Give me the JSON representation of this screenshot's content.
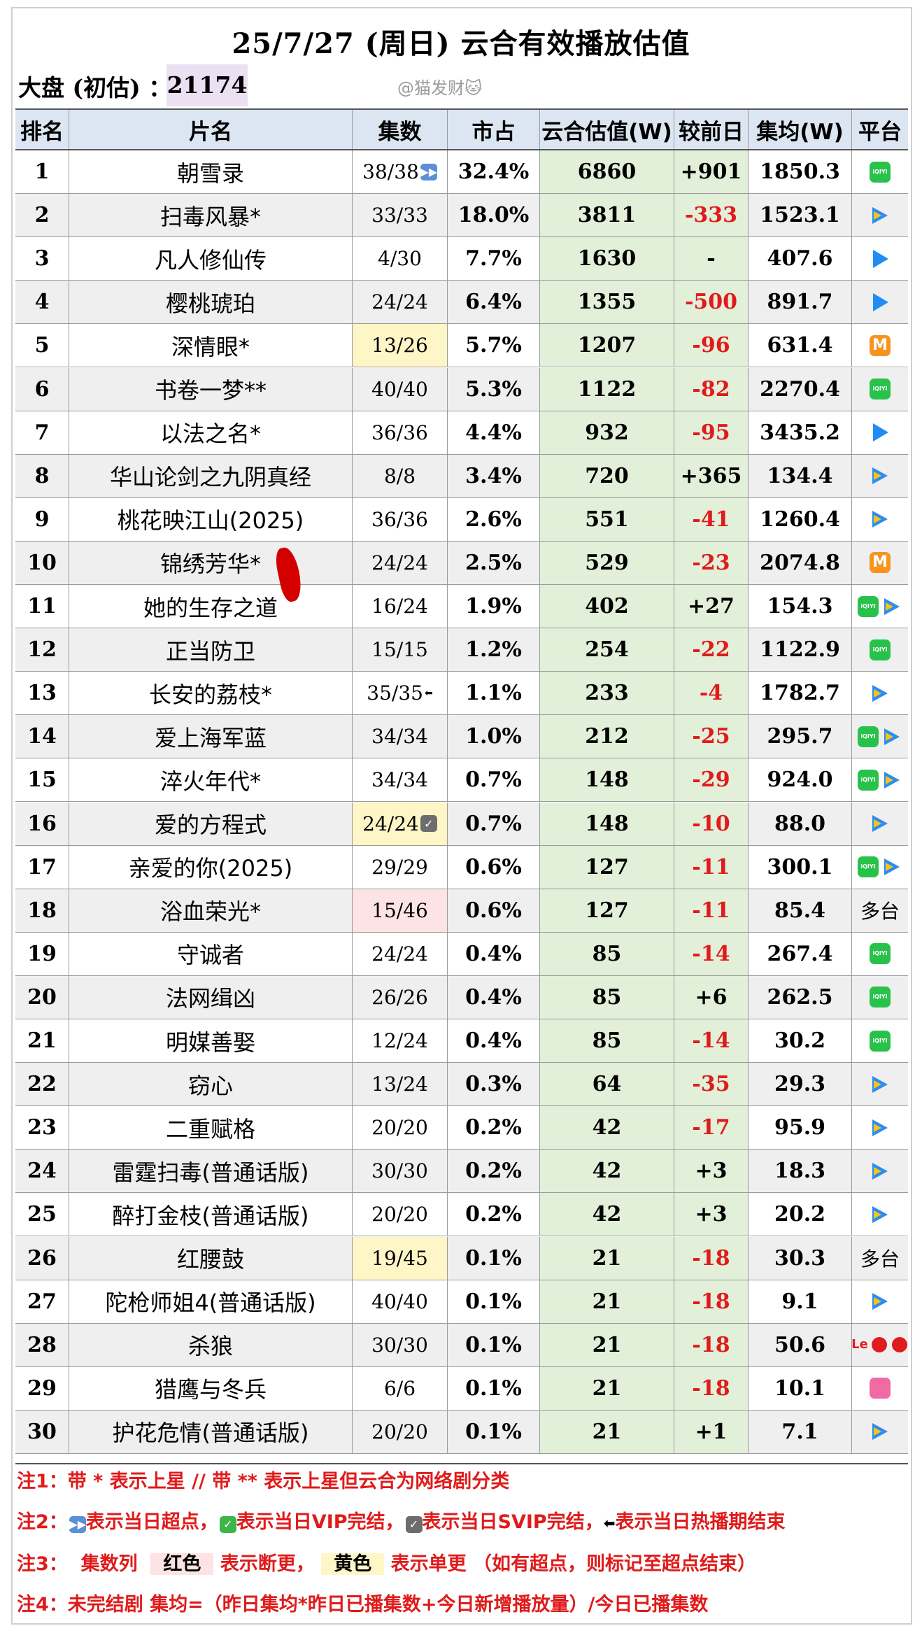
{
  "title": "25/7/27 (周日) 云合有效播放估值",
  "dapan_label": "大盘 (初估) ：",
  "dapan_value": "21174",
  "watermark": "@猫发财🐱",
  "headers": [
    "排名",
    "片名",
    "集数",
    "市占",
    "云合估值(W)",
    "较前日",
    "集均(W)",
    "平台"
  ],
  "rows": [
    {
      "rank": "1",
      "name": "朝雪录",
      "eps": "38/38",
      "eps_mark": "ff",
      "share": "32.4%",
      "yun": "6860",
      "diff": "+901",
      "avg": "1850.3",
      "platforms": [
        "iqiyi"
      ]
    },
    {
      "rank": "2",
      "name": "扫毒风暴*",
      "eps": "33/33",
      "share": "18.0%",
      "yun": "3811",
      "diff": "-333",
      "avg": "1523.1",
      "platforms": [
        "tencent"
      ]
    },
    {
      "rank": "3",
      "name": "凡人修仙传",
      "eps": "4/30",
      "share": "7.7%",
      "yun": "1630",
      "diff": "-",
      "avg": "407.6",
      "platforms": [
        "youku"
      ]
    },
    {
      "rank": "4",
      "name": "樱桃琥珀",
      "eps": "24/24",
      "share": "6.4%",
      "yun": "1355",
      "diff": "-500",
      "avg": "891.7",
      "platforms": [
        "youku"
      ]
    },
    {
      "rank": "5",
      "name": "深情眼*",
      "eps": "13/26",
      "eps_bg": "yellow",
      "share": "5.7%",
      "yun": "1207",
      "diff": "-96",
      "avg": "631.4",
      "platforms": [
        "mango"
      ]
    },
    {
      "rank": "6",
      "name": "书卷一梦**",
      "eps": "40/40",
      "share": "5.3%",
      "yun": "1122",
      "diff": "-82",
      "avg": "2270.4",
      "platforms": [
        "iqiyi"
      ]
    },
    {
      "rank": "7",
      "name": "以法之名*",
      "eps": "36/36",
      "share": "4.4%",
      "yun": "932",
      "diff": "-95",
      "avg": "3435.2",
      "platforms": [
        "youku"
      ]
    },
    {
      "rank": "8",
      "name": "华山论剑之九阴真经",
      "eps": "8/8",
      "share": "3.4%",
      "yun": "720",
      "diff": "+365",
      "avg": "134.4",
      "platforms": [
        "tencent"
      ]
    },
    {
      "rank": "9",
      "name": "桃花映江山(2025)",
      "eps": "36/36",
      "share": "2.6%",
      "yun": "551",
      "diff": "-41",
      "avg": "1260.4",
      "platforms": [
        "tencent"
      ]
    },
    {
      "rank": "10",
      "name": "锦绣芳华*",
      "eps": "24/24",
      "share": "2.5%",
      "yun": "529",
      "diff": "-23",
      "avg": "2074.8",
      "platforms": [
        "mango"
      ]
    },
    {
      "rank": "11",
      "name": "她的生存之道",
      "eps": "16/24",
      "share": "1.9%",
      "yun": "402",
      "diff": "+27",
      "avg": "154.3",
      "platforms": [
        "iqiyi",
        "tencent"
      ]
    },
    {
      "rank": "12",
      "name": "正当防卫",
      "eps": "15/15",
      "share": "1.2%",
      "yun": "254",
      "diff": "-22",
      "avg": "1122.9",
      "platforms": [
        "iqiyi"
      ]
    },
    {
      "rank": "13",
      "name": "长安的荔枝*",
      "eps": "35/35",
      "eps_mark": "end",
      "share": "1.1%",
      "yun": "233",
      "diff": "-4",
      "avg": "1782.7",
      "platforms": [
        "tencent"
      ]
    },
    {
      "rank": "14",
      "name": "爱上海军蓝",
      "eps": "34/34",
      "share": "1.0%",
      "yun": "212",
      "diff": "-25",
      "avg": "295.7",
      "platforms": [
        "iqiyi",
        "tencent"
      ]
    },
    {
      "rank": "15",
      "name": "淬火年代*",
      "eps": "34/34",
      "share": "0.7%",
      "yun": "148",
      "diff": "-29",
      "avg": "924.0",
      "platforms": [
        "iqiyi",
        "tencent"
      ]
    },
    {
      "rank": "16",
      "name": "爱的方程式",
      "eps": "24/24",
      "eps_mark": "svip",
      "eps_bg": "yellow",
      "share": "0.7%",
      "yun": "148",
      "diff": "-10",
      "avg": "88.0",
      "platforms": [
        "tencent"
      ]
    },
    {
      "rank": "17",
      "name": "亲爱的你(2025)",
      "eps": "29/29",
      "share": "0.6%",
      "yun": "127",
      "diff": "-11",
      "avg": "300.1",
      "platforms": [
        "iqiyi",
        "tencent"
      ]
    },
    {
      "rank": "18",
      "name": "浴血荣光*",
      "eps": "15/46",
      "eps_bg": "red",
      "share": "0.6%",
      "yun": "127",
      "diff": "-11",
      "avg": "85.4",
      "platform_text": "多台"
    },
    {
      "rank": "19",
      "name": "守诚者",
      "eps": "24/24",
      "share": "0.4%",
      "yun": "85",
      "diff": "-14",
      "avg": "267.4",
      "platforms": [
        "iqiyi"
      ]
    },
    {
      "rank": "20",
      "name": "法网缉凶",
      "eps": "26/26",
      "share": "0.4%",
      "yun": "85",
      "diff": "+6",
      "avg": "262.5",
      "platforms": [
        "iqiyi"
      ]
    },
    {
      "rank": "21",
      "name": "明媒善娶",
      "eps": "12/24",
      "share": "0.4%",
      "yun": "85",
      "diff": "-14",
      "avg": "30.2",
      "platforms": [
        "iqiyi"
      ]
    },
    {
      "rank": "22",
      "name": "窃心",
      "eps": "13/24",
      "share": "0.3%",
      "yun": "64",
      "diff": "-35",
      "avg": "29.3",
      "platforms": [
        "tencent"
      ]
    },
    {
      "rank": "23",
      "name": "二重赋格",
      "eps": "20/20",
      "share": "0.2%",
      "yun": "42",
      "diff": "-17",
      "avg": "95.9",
      "platforms": [
        "tencent"
      ]
    },
    {
      "rank": "24",
      "name": "雷霆扫毒(普通话版)",
      "eps": "30/30",
      "share": "0.2%",
      "yun": "42",
      "diff": "+3",
      "avg": "18.3",
      "platforms": [
        "tencent"
      ]
    },
    {
      "rank": "25",
      "name": "醉打金枝(普通话版)",
      "eps": "20/20",
      "share": "0.2%",
      "yun": "42",
      "diff": "+3",
      "avg": "20.2",
      "platforms": [
        "tencent"
      ]
    },
    {
      "rank": "26",
      "name": "红腰鼓",
      "eps": "19/45",
      "eps_bg": "yellow",
      "share": "0.1%",
      "yun": "21",
      "diff": "-18",
      "avg": "30.3",
      "platform_text": "多台"
    },
    {
      "rank": "27",
      "name": "陀枪师姐4(普通话版)",
      "eps": "40/40",
      "share": "0.1%",
      "yun": "21",
      "diff": "-18",
      "avg": "9.1",
      "platforms": [
        "tencent"
      ]
    },
    {
      "rank": "28",
      "name": "杀狼",
      "eps": "30/30",
      "share": "0.1%",
      "yun": "21",
      "diff": "-18",
      "avg": "50.6",
      "platforms": [
        "le"
      ]
    },
    {
      "rank": "29",
      "name": "猎鹰与冬兵",
      "eps": "6/6",
      "share": "0.1%",
      "yun": "21",
      "diff": "-18",
      "avg": "10.1",
      "platforms": [
        "pink"
      ]
    },
    {
      "rank": "30",
      "name": "护花危情(普通话版)",
      "eps": "20/20",
      "share": "0.1%",
      "yun": "21",
      "diff": "+1",
      "avg": "7.1",
      "platforms": [
        "tencent"
      ]
    }
  ],
  "notes": {
    "n1": "注1：带 * 表示上星 // 带 ** 表示上星但云合为网络剧分类",
    "n2a": "注2：",
    "n2b": "表示当日超点，",
    "n2c": "表示当日VIP完结，",
    "n2d": "表示当日SVIP完结，",
    "n2e": "表示当日热播期结束",
    "n3a": "注3：",
    "n3b": "集数列",
    "n3c": "红色",
    "n3d": "表示断更，",
    "n3e": "黄色",
    "n3f": "表示单更 （如有超点，则标记至超点结束）",
    "n4": "注4：未完结剧 集均=（昨日集均*昨日已播集数+今日新增播放量）/今日已播集数"
  },
  "colors": {
    "header_bg": "#dce6f2",
    "yun_bg": "#e2efd9",
    "negative": "#e01b1b",
    "alt_row": "#efefef",
    "dapan_bg": "#ece0f3"
  }
}
